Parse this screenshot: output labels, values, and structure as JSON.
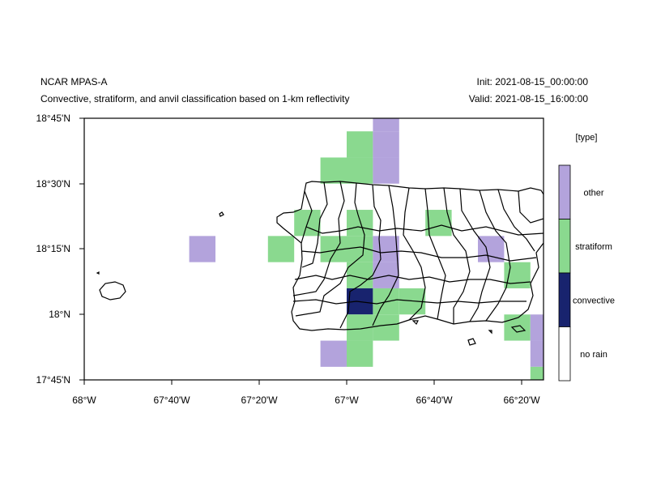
{
  "header": {
    "model": "NCAR MPAS-A",
    "description": "Convective, stratiform, and anvil classification based on 1-km reflectivity",
    "init": "Init: 2021-08-15_00:00:00",
    "valid": "Valid: 2021-08-15_16:00:00"
  },
  "legend": {
    "title": "[type]",
    "entries": [
      {
        "label": "other",
        "color": "#b3a3dc"
      },
      {
        "label": "stratiform",
        "color": "#8ad98f"
      },
      {
        "label": "convective",
        "color": "#18236e"
      },
      {
        "label": "no rain",
        "color": "#ffffff"
      }
    ]
  },
  "map": {
    "lon_range": [
      -68.0,
      -66.25
    ],
    "lat_range": [
      17.75,
      18.75
    ],
    "lon_ticks": [
      "68°W",
      "67°40'W",
      "67°20'W",
      "67°W",
      "66°40'W",
      "66°20'W"
    ],
    "lat_ticks": [
      "18°45'N",
      "18°30'N",
      "18°15'N",
      "18°N",
      "17°45'N"
    ],
    "cells": [
      {
        "lon": -67.55,
        "lat": 18.25,
        "type": "other"
      },
      {
        "lon": -67.25,
        "lat": 18.25,
        "type": "stratiform"
      },
      {
        "lon": -67.15,
        "lat": 18.35,
        "type": "stratiform"
      },
      {
        "lon": -67.05,
        "lat": 18.25,
        "type": "stratiform"
      },
      {
        "lon": -67.05,
        "lat": 18.55,
        "type": "stratiform"
      },
      {
        "lon": -66.95,
        "lat": 18.65,
        "type": "stratiform"
      },
      {
        "lon": -66.95,
        "lat": 18.55,
        "type": "stratiform"
      },
      {
        "lon": -66.95,
        "lat": 18.35,
        "type": "stratiform"
      },
      {
        "lon": -66.95,
        "lat": 18.25,
        "type": "stratiform"
      },
      {
        "lon": -66.95,
        "lat": 18.15,
        "type": "stratiform"
      },
      {
        "lon": -66.95,
        "lat": 18.05,
        "type": "convective"
      },
      {
        "lon": -66.95,
        "lat": 17.95,
        "type": "stratiform"
      },
      {
        "lon": -66.95,
        "lat": 17.85,
        "type": "stratiform"
      },
      {
        "lon": -67.05,
        "lat": 17.85,
        "type": "other"
      },
      {
        "lon": -66.85,
        "lat": 18.75,
        "type": "other"
      },
      {
        "lon": -66.85,
        "lat": 18.65,
        "type": "other"
      },
      {
        "lon": -66.85,
        "lat": 18.55,
        "type": "other"
      },
      {
        "lon": -66.85,
        "lat": 18.25,
        "type": "other"
      },
      {
        "lon": -66.85,
        "lat": 18.15,
        "type": "other"
      },
      {
        "lon": -66.85,
        "lat": 18.05,
        "type": "stratiform"
      },
      {
        "lon": -66.85,
        "lat": 17.95,
        "type": "stratiform"
      },
      {
        "lon": -66.75,
        "lat": 18.05,
        "type": "stratiform"
      },
      {
        "lon": -66.65,
        "lat": 18.35,
        "type": "stratiform"
      },
      {
        "lon": -66.45,
        "lat": 18.25,
        "type": "other"
      },
      {
        "lon": -66.35,
        "lat": 18.15,
        "type": "stratiform"
      },
      {
        "lon": -66.35,
        "lat": 17.95,
        "type": "stratiform"
      },
      {
        "lon": -66.25,
        "lat": 17.95,
        "type": "other"
      },
      {
        "lon": -66.25,
        "lat": 17.85,
        "type": "other"
      },
      {
        "lon": -66.25,
        "lat": 17.75,
        "type": "stratiform"
      }
    ]
  }
}
